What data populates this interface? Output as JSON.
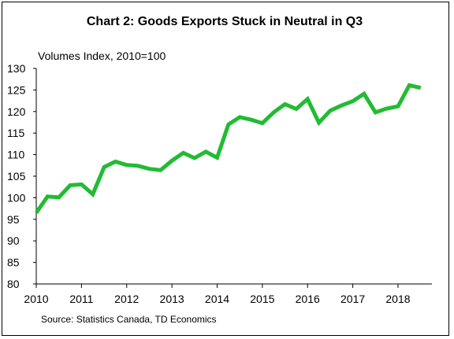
{
  "chart_data": {
    "type": "line",
    "title": "Chart 2: Goods Exports Stuck in Neutral in Q3",
    "ylabel": "Volumes Index, 2010=100",
    "xlabel": "",
    "source": "Source: Statistics Canada, TD Economics",
    "ylim": [
      80,
      130
    ],
    "y_ticks": [
      80,
      85,
      90,
      95,
      100,
      105,
      110,
      115,
      120,
      125,
      130
    ],
    "xlim": [
      2010,
      2018.75
    ],
    "x_ticks": [
      2010,
      2011,
      2012,
      2013,
      2014,
      2015,
      2016,
      2017,
      2018
    ],
    "grid": false,
    "legend": "none",
    "line_color": "#22bb33",
    "series": [
      {
        "x": [
          2010.0,
          2010.25,
          2010.5,
          2010.75,
          2011.0,
          2011.25,
          2011.5,
          2011.75,
          2012.0,
          2012.25,
          2012.5,
          2012.75,
          2013.0,
          2013.25,
          2013.5,
          2013.75,
          2014.0,
          2014.25,
          2014.5,
          2014.75,
          2015.0,
          2015.25,
          2015.5,
          2015.75,
          2016.0,
          2016.25,
          2016.5,
          2016.75,
          2017.0,
          2017.25,
          2017.5,
          2017.75,
          2018.0,
          2018.25,
          2018.5
        ],
        "values": [
          96.5,
          100.3,
          100.1,
          102.9,
          103.1,
          100.8,
          107.1,
          108.4,
          107.6,
          107.4,
          106.7,
          106.4,
          108.6,
          110.4,
          109.2,
          110.7,
          109.3,
          117.0,
          118.7,
          118.1,
          117.3,
          119.8,
          121.7,
          120.6,
          122.9,
          117.4,
          120.2,
          121.4,
          122.4,
          124.1,
          119.8,
          120.7,
          121.2,
          126.1,
          125.5
        ]
      }
    ]
  }
}
